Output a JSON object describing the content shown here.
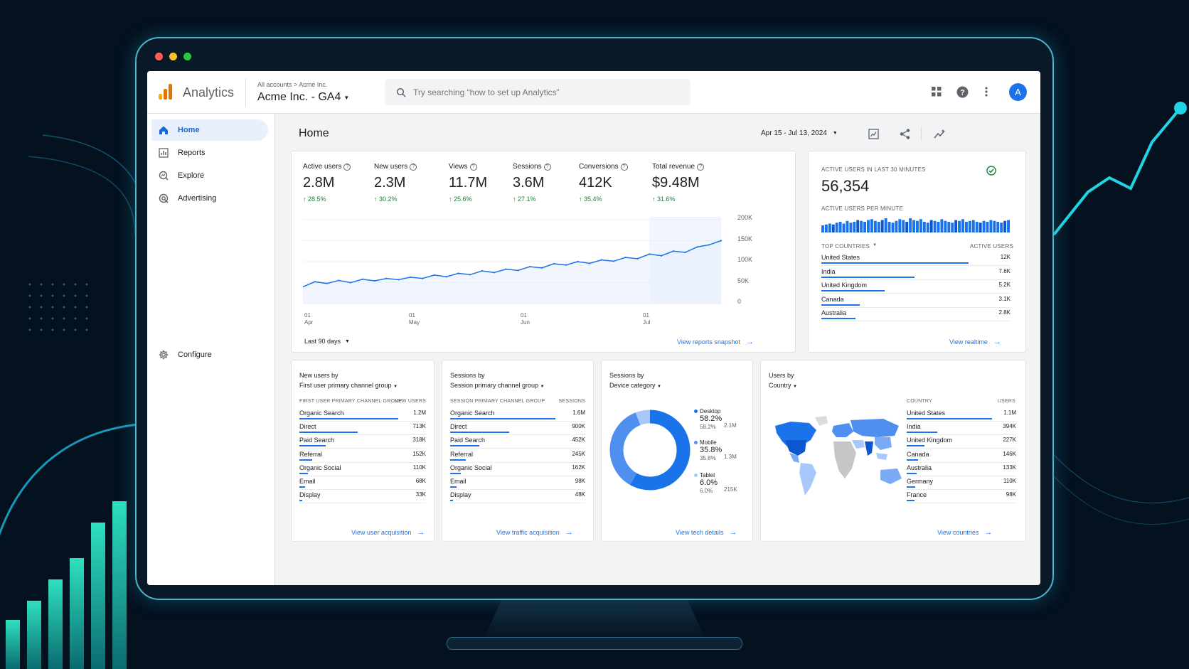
{
  "app": {
    "name": "Analytics",
    "breadcrumb": "All accounts > Acme Inc.",
    "property": "Acme Inc. - GA4",
    "avatar_letter": "A",
    "brand_colors": {
      "logo": [
        "#f9ab00",
        "#e37400",
        "#e37400"
      ],
      "accent": "#1a73e8",
      "positive": "#188038"
    }
  },
  "search": {
    "placeholder": "Try searching “how to set up Analytics”"
  },
  "topbar_icons": [
    "apps-grid-icon",
    "help-icon",
    "more-vert-icon"
  ],
  "sidebar": {
    "items": [
      {
        "label": "Home",
        "icon": "home-icon",
        "active": true
      },
      {
        "label": "Reports",
        "icon": "reports-icon"
      },
      {
        "label": "Explore",
        "icon": "explore-icon"
      },
      {
        "label": "Advertising",
        "icon": "advertising-icon"
      }
    ],
    "configure": "Configure"
  },
  "main": {
    "title": "Home",
    "date_range": "Apr 15 - Jul 13, 2024",
    "tools": [
      "customize-icon",
      "share-icon",
      "insights-icon"
    ]
  },
  "overview": {
    "kpis": [
      {
        "label": "Active users",
        "value": "2.8M",
        "change": "↑ 28.5%"
      },
      {
        "label": "New users",
        "value": "2.3M",
        "change": "↑ 30.2%"
      },
      {
        "label": "Views",
        "value": "11.7M",
        "change": "↑ 25.6%"
      },
      {
        "label": "Sessions",
        "value": "3.6M",
        "change": "↑ 27.1%"
      },
      {
        "label": "Conversions",
        "value": "412K",
        "change": "↑ 35.4%"
      },
      {
        "label": "Total revenue",
        "value": "$9.48M",
        "change": "↑ 31.6%"
      }
    ],
    "period_label": "Last 90 days",
    "link": "View reports snapshot"
  },
  "realtime": {
    "title": "ACTIVE USERS IN LAST 30 MINUTES",
    "value": "56,354",
    "per_minute_label": "ACTIVE USERS PER MINUTE",
    "col_left": "TOP COUNTRIES",
    "col_right": "ACTIVE USERS",
    "rows": [
      {
        "name": "United States",
        "value": "12K",
        "share": 1
      },
      {
        "name": "India",
        "value": "7.6K",
        "share": 0.63
      },
      {
        "name": "United Kingdom",
        "value": "5.2K",
        "share": 0.43
      },
      {
        "name": "Canada",
        "value": "3.1K",
        "share": 0.26
      },
      {
        "name": "Australia",
        "value": "2.8K",
        "share": 0.23
      }
    ],
    "link": "View realtime"
  },
  "new_users": {
    "title_line1": "New users by",
    "title_line2": "First user primary channel group",
    "col_left": "FIRST USER PRIMARY CHANNEL GROUP",
    "col_right": "NEW USERS",
    "rows": [
      {
        "name": "Organic Search",
        "value": "1.2M",
        "share": 1
      },
      {
        "name": "Direct",
        "value": "713K",
        "share": 0.59
      },
      {
        "name": "Paid Search",
        "value": "318K",
        "share": 0.27
      },
      {
        "name": "Referral",
        "value": "152K",
        "share": 0.13
      },
      {
        "name": "Organic Social",
        "value": "110K",
        "share": 0.09
      },
      {
        "name": "Email",
        "value": "68K",
        "share": 0.06
      },
      {
        "name": "Display",
        "value": "33K",
        "share": 0.03
      }
    ],
    "link": "View user acquisition"
  },
  "sessions_channel": {
    "title_line1": "Sessions by",
    "title_line2": "Session primary channel group",
    "col_left": "SESSION PRIMARY CHANNEL GROUP",
    "col_right": "SESSIONS",
    "rows": [
      {
        "name": "Organic Search",
        "value": "1.6M",
        "share": 1
      },
      {
        "name": "Direct",
        "value": "900K",
        "share": 0.56
      },
      {
        "name": "Paid Search",
        "value": "452K",
        "share": 0.28
      },
      {
        "name": "Referral",
        "value": "245K",
        "share": 0.15
      },
      {
        "name": "Organic Social",
        "value": "162K",
        "share": 0.1
      },
      {
        "name": "Email",
        "value": "98K",
        "share": 0.06
      },
      {
        "name": "Display",
        "value": "48K",
        "share": 0.03
      }
    ],
    "link": "View traffic acquisition"
  },
  "sessions_device": {
    "title_line1": "Sessions by",
    "title_line2": "Device category",
    "legend": [
      {
        "name": "Desktop",
        "pct": "58.2%",
        "prev": "58.2%",
        "value": "2.1M",
        "color": "#1a73e8"
      },
      {
        "name": "Mobile",
        "pct": "35.8%",
        "prev": "35.8%",
        "value": "1.3M",
        "color": "#4f8ff0"
      },
      {
        "name": "Tablet",
        "pct": "6.0%",
        "prev": "6.0%",
        "value": "215K",
        "color": "#a8c7fa"
      }
    ],
    "link": "View tech details"
  },
  "users_country": {
    "title_line1": "Users by",
    "title_line2": "Country",
    "col_left": "COUNTRY",
    "col_right": "USERS",
    "rows": [
      {
        "name": "United States",
        "value": "1.1M",
        "share": 1
      },
      {
        "name": "India",
        "value": "394K",
        "share": 0.36
      },
      {
        "name": "United Kingdom",
        "value": "227K",
        "share": 0.21
      },
      {
        "name": "Canada",
        "value": "146K",
        "share": 0.13
      },
      {
        "name": "Australia",
        "value": "133K",
        "share": 0.12
      },
      {
        "name": "Germany",
        "value": "110K",
        "share": 0.1
      },
      {
        "name": "France",
        "value": "98K",
        "share": 0.09
      }
    ],
    "link": "View countries"
  },
  "chart_data": [
    {
      "type": "area",
      "x_ticks": [
        [
          "01",
          "Apr"
        ],
        [
          "01",
          "May"
        ],
        [
          "01",
          "Jun"
        ],
        [
          "01",
          "Jul"
        ]
      ],
      "y_ticks": [
        "200K",
        "150K",
        "100K",
        "50K",
        "0"
      ],
      "ylim": [
        0,
        200000
      ],
      "x": [
        0,
        3,
        6,
        9,
        12,
        15,
        18,
        21,
        24,
        27,
        30,
        33,
        36,
        39,
        42,
        45,
        48,
        51,
        54,
        57,
        60,
        63,
        66,
        69,
        72,
        75,
        78,
        81,
        84,
        87,
        90,
        93,
        96,
        99,
        102,
        105
      ],
      "values": [
        40000,
        52000,
        48000,
        55000,
        50000,
        58000,
        54000,
        60000,
        57000,
        63000,
        60000,
        68000,
        64000,
        72000,
        69000,
        78000,
        74000,
        82000,
        79000,
        88000,
        85000,
        95000,
        92000,
        100000,
        96000,
        104000,
        101000,
        110000,
        107000,
        118000,
        114000,
        125000,
        122000,
        135000,
        140000,
        150000
      ]
    },
    {
      "type": "bar",
      "series_label": "ACTIVE USERS PER MINUTE",
      "values": [
        8,
        9,
        10,
        9,
        11,
        12,
        10,
        13,
        11,
        12,
        14,
        13,
        12,
        14,
        15,
        13,
        12,
        14,
        16,
        12,
        11,
        13,
        15,
        14,
        12,
        16,
        14,
        13,
        15,
        12,
        11,
        14,
        13,
        12,
        15,
        13,
        12,
        11,
        14,
        13,
        15,
        12,
        13,
        14,
        12,
        11,
        13,
        12,
        14,
        13,
        12,
        11,
        13,
        14
      ]
    },
    {
      "type": "pie",
      "categories": [
        "Desktop",
        "Mobile",
        "Tablet"
      ],
      "values": [
        58.2,
        35.8,
        6.0
      ]
    }
  ]
}
